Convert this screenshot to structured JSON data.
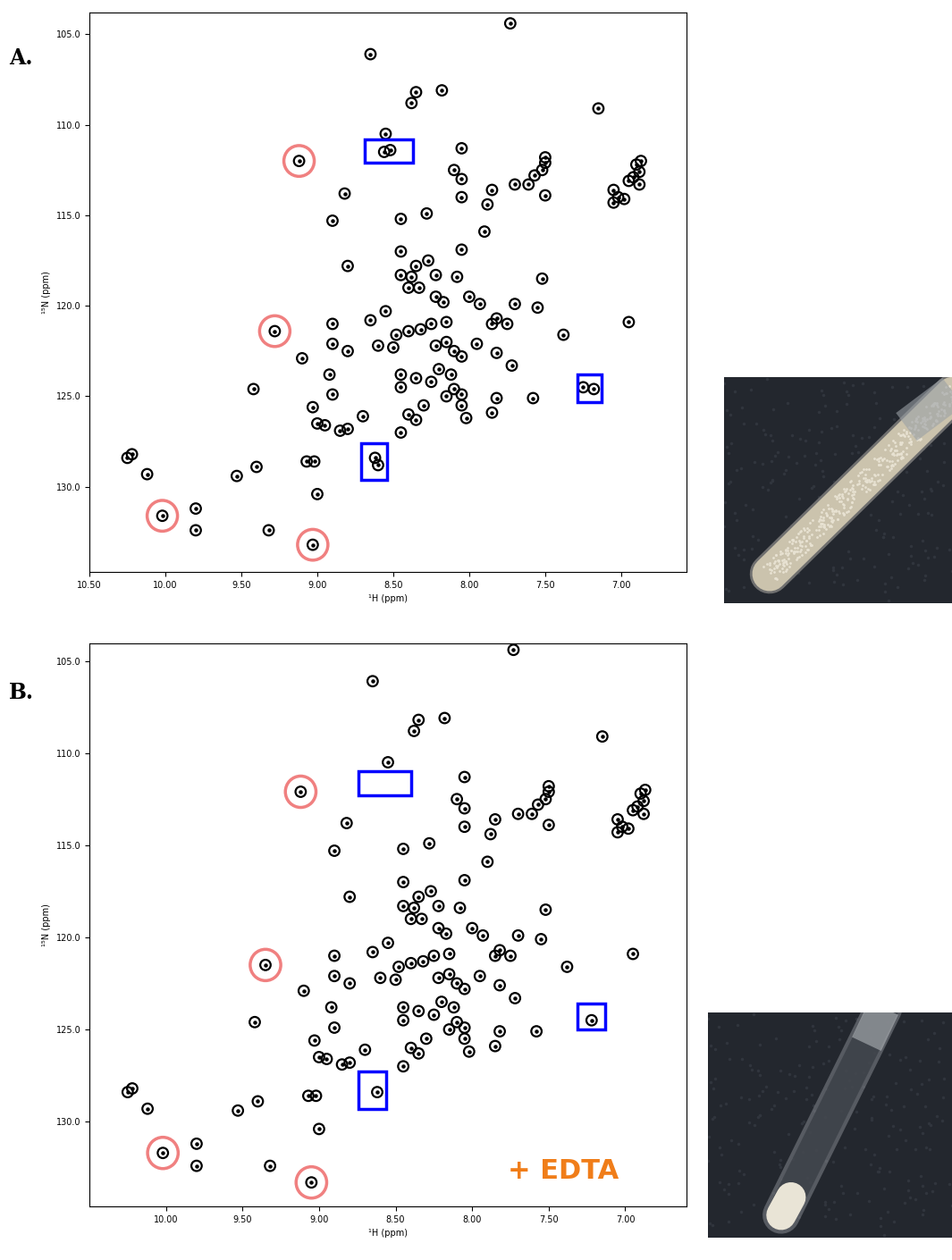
{
  "chart_data": [
    {
      "type": "scatter",
      "title": "A.",
      "x_label": "¹H (ppm)",
      "y_label": "¹⁵N (ppm)",
      "xlim": [
        10.5,
        6.57
      ],
      "ylim": [
        134.7,
        103.8
      ],
      "xticks": [
        {
          "value": 10.5,
          "label": "10.50"
        },
        {
          "value": 10.0,
          "label": "10.00"
        },
        {
          "value": 9.5,
          "label": "9.50"
        },
        {
          "value": 9.0,
          "label": "9.00"
        },
        {
          "value": 8.5,
          "label": "8.50"
        },
        {
          "value": 8.0,
          "label": "8.00"
        },
        {
          "value": 7.5,
          "label": "7.50"
        },
        {
          "value": 7.0,
          "label": "7.00"
        }
      ],
      "yticks": [
        {
          "value": 105,
          "label": "105.0"
        },
        {
          "value": 110,
          "label": "110.0"
        },
        {
          "value": 115,
          "label": "115.0"
        },
        {
          "value": 120,
          "label": "120.0"
        },
        {
          "value": 125,
          "label": "125.0"
        },
        {
          "value": 130,
          "label": "130.0"
        }
      ],
      "marker": "circle",
      "color": "#000000",
      "points": [
        [
          7.73,
          104.4
        ],
        [
          8.65,
          106.1
        ],
        [
          8.35,
          108.2
        ],
        [
          8.18,
          108.1
        ],
        [
          8.38,
          108.8
        ],
        [
          7.15,
          109.1
        ],
        [
          8.55,
          110.5
        ],
        [
          8.56,
          111.5
        ],
        [
          8.52,
          111.4
        ],
        [
          8.05,
          111.3
        ],
        [
          7.5,
          111.8
        ],
        [
          7.5,
          112.1
        ],
        [
          7.52,
          112.5
        ],
        [
          7.57,
          112.8
        ],
        [
          7.61,
          113.3
        ],
        [
          7.7,
          113.3
        ],
        [
          8.1,
          112.5
        ],
        [
          8.05,
          113.0
        ],
        [
          8.05,
          114.0
        ],
        [
          7.85,
          113.6
        ],
        [
          7.88,
          114.4
        ],
        [
          7.5,
          113.9
        ],
        [
          7.05,
          113.6
        ],
        [
          7.02,
          114.0
        ],
        [
          7.05,
          114.3
        ],
        [
          6.98,
          114.1
        ],
        [
          6.9,
          112.2
        ],
        [
          6.87,
          112.0
        ],
        [
          6.88,
          112.6
        ],
        [
          6.92,
          112.9
        ],
        [
          6.88,
          113.3
        ],
        [
          6.95,
          113.1
        ],
        [
          8.82,
          113.8
        ],
        [
          8.9,
          115.3
        ],
        [
          8.45,
          115.2
        ],
        [
          8.28,
          114.9
        ],
        [
          7.9,
          115.9
        ],
        [
          8.05,
          116.9
        ],
        [
          8.45,
          117.0
        ],
        [
          8.8,
          117.8
        ],
        [
          8.27,
          117.5
        ],
        [
          8.35,
          117.8
        ],
        [
          8.45,
          118.3
        ],
        [
          8.38,
          118.4
        ],
        [
          8.22,
          118.3
        ],
        [
          8.08,
          118.4
        ],
        [
          8.4,
          119.0
        ],
        [
          8.33,
          119.0
        ],
        [
          8.22,
          119.5
        ],
        [
          8.17,
          119.8
        ],
        [
          7.52,
          118.5
        ],
        [
          8.0,
          119.5
        ],
        [
          7.93,
          119.9
        ],
        [
          8.55,
          120.3
        ],
        [
          8.65,
          120.8
        ],
        [
          8.9,
          121.0
        ],
        [
          8.48,
          121.6
        ],
        [
          8.4,
          121.4
        ],
        [
          8.32,
          121.3
        ],
        [
          8.25,
          121.0
        ],
        [
          8.15,
          120.9
        ],
        [
          7.82,
          120.7
        ],
        [
          7.85,
          121.0
        ],
        [
          7.75,
          121.0
        ],
        [
          7.7,
          119.9
        ],
        [
          7.55,
          120.1
        ],
        [
          6.95,
          120.9
        ],
        [
          8.9,
          122.1
        ],
        [
          8.8,
          122.5
        ],
        [
          8.6,
          122.2
        ],
        [
          8.5,
          122.3
        ],
        [
          8.22,
          122.2
        ],
        [
          8.15,
          122.0
        ],
        [
          8.1,
          122.5
        ],
        [
          8.05,
          122.8
        ],
        [
          7.95,
          122.1
        ],
        [
          7.82,
          122.6
        ],
        [
          7.38,
          121.6
        ],
        [
          9.1,
          122.9
        ],
        [
          8.92,
          123.8
        ],
        [
          8.45,
          123.8
        ],
        [
          8.35,
          124.0
        ],
        [
          8.2,
          123.5
        ],
        [
          8.12,
          123.8
        ],
        [
          8.25,
          124.2
        ],
        [
          8.1,
          124.6
        ],
        [
          8.05,
          124.9
        ],
        [
          8.15,
          125.0
        ],
        [
          8.05,
          125.5
        ],
        [
          7.72,
          123.3
        ],
        [
          8.45,
          124.5
        ],
        [
          9.42,
          124.6
        ],
        [
          8.9,
          124.9
        ],
        [
          8.3,
          125.5
        ],
        [
          7.82,
          125.1
        ],
        [
          7.58,
          125.1
        ],
        [
          9.03,
          125.6
        ],
        [
          8.7,
          126.1
        ],
        [
          8.35,
          126.3
        ],
        [
          8.4,
          126.0
        ],
        [
          8.02,
          126.2
        ],
        [
          7.85,
          125.9
        ],
        [
          9.0,
          126.5
        ],
        [
          8.95,
          126.6
        ],
        [
          8.8,
          126.8
        ],
        [
          8.85,
          126.9
        ],
        [
          8.45,
          127.0
        ],
        [
          10.22,
          128.2
        ],
        [
          10.25,
          128.4
        ],
        [
          10.12,
          129.3
        ],
        [
          9.53,
          129.4
        ],
        [
          9.4,
          128.9
        ],
        [
          9.07,
          128.6
        ],
        [
          9.02,
          128.6
        ],
        [
          9.0,
          130.4
        ],
        [
          9.8,
          131.2
        ],
        [
          9.8,
          132.4
        ],
        [
          9.32,
          132.4
        ],
        [
          9.12,
          112.0
        ],
        [
          9.28,
          121.4
        ],
        [
          10.02,
          131.6
        ],
        [
          9.03,
          133.2
        ],
        [
          8.62,
          128.4
        ],
        [
          8.6,
          128.8
        ],
        [
          7.25,
          124.5
        ],
        [
          7.18,
          124.6
        ]
      ],
      "highlight_circles": {
        "color": "#f08080",
        "points": [
          [
            9.12,
            112.0
          ],
          [
            9.28,
            121.4
          ],
          [
            10.02,
            131.6
          ],
          [
            9.03,
            133.2
          ]
        ]
      },
      "highlight_boxes": {
        "color": "#0000ff",
        "regions": [
          {
            "x": [
              8.69,
              8.37
            ],
            "y": [
              110.8,
              112.1
            ]
          },
          {
            "x": [
              8.71,
              8.54
            ],
            "y": [
              127.6,
              129.6
            ]
          },
          {
            "x": [
              7.29,
              7.13
            ],
            "y": [
              123.8,
              125.3
            ]
          }
        ]
      }
    },
    {
      "type": "scatter",
      "title": "B.",
      "x_label": "¹H (ppm)",
      "y_label": "¹⁵N (ppm)",
      "annotation": "+ EDTA",
      "xlim": [
        10.5,
        6.6
      ],
      "ylim": [
        134.6,
        104.05
      ],
      "xticks": [
        {
          "value": 10.0,
          "label": "10.00"
        },
        {
          "value": 9.5,
          "label": "9.50"
        },
        {
          "value": 9.0,
          "label": "9.00"
        },
        {
          "value": 8.5,
          "label": "8.50"
        },
        {
          "value": 8.0,
          "label": "8.00"
        },
        {
          "value": 7.5,
          "label": "7.50"
        },
        {
          "value": 7.0,
          "label": "7.00"
        }
      ],
      "yticks": [
        {
          "value": 105,
          "label": "105.0"
        },
        {
          "value": 110,
          "label": "110.0"
        },
        {
          "value": 115,
          "label": "115.0"
        },
        {
          "value": 120,
          "label": "120.0"
        },
        {
          "value": 125,
          "label": "125.0"
        },
        {
          "value": 130,
          "label": "130.0"
        }
      ],
      "marker": "circle",
      "color": "#000000",
      "points": [
        [
          7.73,
          104.4
        ],
        [
          8.65,
          106.1
        ],
        [
          8.35,
          108.2
        ],
        [
          8.18,
          108.1
        ],
        [
          8.38,
          108.8
        ],
        [
          7.15,
          109.1
        ],
        [
          8.55,
          110.5
        ],
        [
          8.05,
          111.3
        ],
        [
          7.5,
          111.8
        ],
        [
          7.5,
          112.1
        ],
        [
          7.52,
          112.5
        ],
        [
          7.57,
          112.8
        ],
        [
          7.61,
          113.3
        ],
        [
          7.7,
          113.3
        ],
        [
          8.1,
          112.5
        ],
        [
          8.05,
          113.0
        ],
        [
          8.05,
          114.0
        ],
        [
          7.85,
          113.6
        ],
        [
          7.88,
          114.4
        ],
        [
          7.5,
          113.9
        ],
        [
          7.05,
          113.6
        ],
        [
          7.02,
          114.0
        ],
        [
          7.05,
          114.3
        ],
        [
          6.98,
          114.1
        ],
        [
          6.9,
          112.2
        ],
        [
          6.87,
          112.0
        ],
        [
          6.88,
          112.6
        ],
        [
          6.92,
          112.9
        ],
        [
          6.88,
          113.3
        ],
        [
          6.95,
          113.1
        ],
        [
          8.82,
          113.8
        ],
        [
          8.9,
          115.3
        ],
        [
          8.45,
          115.2
        ],
        [
          8.28,
          114.9
        ],
        [
          7.9,
          115.9
        ],
        [
          8.05,
          116.9
        ],
        [
          8.45,
          117.0
        ],
        [
          8.8,
          117.8
        ],
        [
          8.27,
          117.5
        ],
        [
          8.35,
          117.8
        ],
        [
          8.45,
          118.3
        ],
        [
          8.38,
          118.4
        ],
        [
          8.22,
          118.3
        ],
        [
          8.08,
          118.4
        ],
        [
          8.4,
          119.0
        ],
        [
          8.33,
          119.0
        ],
        [
          8.22,
          119.5
        ],
        [
          8.17,
          119.8
        ],
        [
          7.52,
          118.5
        ],
        [
          8.0,
          119.5
        ],
        [
          7.93,
          119.9
        ],
        [
          8.55,
          120.3
        ],
        [
          8.65,
          120.8
        ],
        [
          8.9,
          121.0
        ],
        [
          8.48,
          121.6
        ],
        [
          8.4,
          121.4
        ],
        [
          8.32,
          121.3
        ],
        [
          8.25,
          121.0
        ],
        [
          8.15,
          120.9
        ],
        [
          7.82,
          120.7
        ],
        [
          7.85,
          121.0
        ],
        [
          7.75,
          121.0
        ],
        [
          7.7,
          119.9
        ],
        [
          7.55,
          120.1
        ],
        [
          6.95,
          120.9
        ],
        [
          8.9,
          122.1
        ],
        [
          8.8,
          122.5
        ],
        [
          8.6,
          122.2
        ],
        [
          8.5,
          122.3
        ],
        [
          8.22,
          122.2
        ],
        [
          8.15,
          122.0
        ],
        [
          8.1,
          122.5
        ],
        [
          8.05,
          122.8
        ],
        [
          7.95,
          122.1
        ],
        [
          7.82,
          122.6
        ],
        [
          7.38,
          121.6
        ],
        [
          9.1,
          122.9
        ],
        [
          8.92,
          123.8
        ],
        [
          8.45,
          123.8
        ],
        [
          8.35,
          124.0
        ],
        [
          8.2,
          123.5
        ],
        [
          8.12,
          123.8
        ],
        [
          8.25,
          124.2
        ],
        [
          8.1,
          124.6
        ],
        [
          8.05,
          124.9
        ],
        [
          8.15,
          125.0
        ],
        [
          8.05,
          125.5
        ],
        [
          7.72,
          123.3
        ],
        [
          8.45,
          124.5
        ],
        [
          9.42,
          124.6
        ],
        [
          8.9,
          124.9
        ],
        [
          8.3,
          125.5
        ],
        [
          7.82,
          125.1
        ],
        [
          7.58,
          125.1
        ],
        [
          9.03,
          125.6
        ],
        [
          8.7,
          126.1
        ],
        [
          8.35,
          126.3
        ],
        [
          8.4,
          126.0
        ],
        [
          8.02,
          126.2
        ],
        [
          7.85,
          125.9
        ],
        [
          9.0,
          126.5
        ],
        [
          8.95,
          126.6
        ],
        [
          8.8,
          126.8
        ],
        [
          8.85,
          126.9
        ],
        [
          8.45,
          127.0
        ],
        [
          10.22,
          128.2
        ],
        [
          10.25,
          128.4
        ],
        [
          10.12,
          129.3
        ],
        [
          9.53,
          129.4
        ],
        [
          9.4,
          128.9
        ],
        [
          9.07,
          128.6
        ],
        [
          9.02,
          128.6
        ],
        [
          9.0,
          130.4
        ],
        [
          9.8,
          131.2
        ],
        [
          9.8,
          132.4
        ],
        [
          9.32,
          132.4
        ],
        [
          9.12,
          112.1
        ],
        [
          9.35,
          121.5
        ],
        [
          10.02,
          131.7
        ],
        [
          9.05,
          133.3
        ],
        [
          8.62,
          128.4
        ],
        [
          7.22,
          124.5
        ]
      ],
      "highlight_circles": {
        "color": "#f08080",
        "points": [
          [
            9.12,
            112.1
          ],
          [
            9.35,
            121.5
          ],
          [
            10.02,
            131.7
          ],
          [
            9.05,
            133.3
          ]
        ]
      },
      "highlight_boxes": {
        "color": "#0000ff",
        "regions": [
          {
            "x": [
              8.74,
              8.4
            ],
            "y": [
              111.0,
              112.3
            ]
          },
          {
            "x": [
              8.74,
              8.56
            ],
            "y": [
              127.3,
              129.3
            ]
          },
          {
            "x": [
              7.31,
              7.13
            ],
            "y": [
              123.6,
              125.0
            ]
          }
        ]
      }
    }
  ]
}
